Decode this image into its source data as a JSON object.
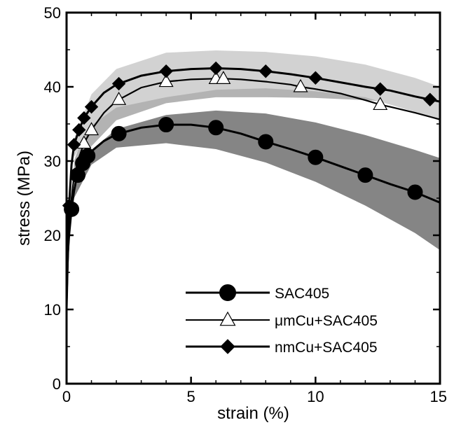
{
  "chart_data": {
    "type": "line",
    "xlabel": "strain (%)",
    "ylabel": "stress (MPa)",
    "xlim": [
      0,
      15
    ],
    "ylim": [
      0,
      50
    ],
    "x_ticks": [
      0,
      5,
      10,
      15
    ],
    "y_ticks": [
      0,
      10,
      20,
      30,
      40,
      50
    ],
    "grid": false,
    "legend_position": "bottom-right",
    "series": [
      {
        "name": "SAC405",
        "marker": "circle",
        "line_color": "#000000",
        "marker_fill": "#000000",
        "band_color": "#858585",
        "x": [
          0,
          0.05,
          0.1,
          0.2,
          0.3,
          0.4,
          0.5,
          0.6,
          0.7,
          0.8,
          1.0,
          1.5,
          2.0,
          3.0,
          4.0,
          5.0,
          6.0,
          7.0,
          8.0,
          9.0,
          10.0,
          11.0,
          12.0,
          13.0,
          14.0,
          15.0
        ],
        "y": [
          10.0,
          17.5,
          20.0,
          23.5,
          26.0,
          27.6,
          28.6,
          29.4,
          30.0,
          30.5,
          31.3,
          32.7,
          33.6,
          34.5,
          34.9,
          34.9,
          34.5,
          33.7,
          32.6,
          31.6,
          30.5,
          29.3,
          28.1,
          26.9,
          25.8,
          24.4
        ],
        "marker_x": [
          0.2,
          0.45,
          0.65,
          0.85,
          2.1,
          4.0,
          6.0,
          8.0,
          10.0,
          12.0,
          14.0
        ],
        "band_x": [
          0.3,
          1.0,
          2.0,
          4.0,
          6.0,
          8.0,
          10.0,
          12.0,
          14.0,
          15.0
        ],
        "band_upper": [
          28.0,
          31.5,
          34.3,
          36.2,
          36.8,
          36.4,
          35.2,
          33.5,
          31.5,
          30.4
        ],
        "band_lower": [
          25.0,
          29.5,
          31.8,
          32.4,
          31.6,
          29.8,
          27.2,
          24.0,
          20.3,
          18.0
        ]
      },
      {
        "name": "μmCu+SAC405",
        "marker": "triangle-open",
        "line_color": "#000000",
        "marker_fill": "#ffffff",
        "band_color": "#b3b3b3",
        "x": [
          0,
          0.05,
          0.1,
          0.2,
          0.3,
          0.5,
          0.7,
          1.0,
          1.5,
          2.0,
          3.0,
          4.0,
          5.0,
          6.0,
          6.3,
          7.0,
          8.0,
          9.0,
          9.4,
          10.0,
          11.0,
          12.0,
          12.6,
          13.0,
          14.0,
          15.0
        ],
        "y": [
          10.0,
          16.0,
          20.5,
          25.0,
          28.0,
          30.5,
          32.4,
          34.2,
          36.5,
          38.1,
          39.9,
          40.7,
          41.0,
          41.1,
          41.1,
          41.0,
          40.7,
          40.3,
          40.0,
          39.7,
          39.1,
          38.2,
          37.6,
          37.3,
          36.5,
          35.6
        ],
        "marker_x": [
          0.7,
          1.0,
          2.1,
          4.0,
          6.0,
          6.3,
          9.4,
          12.6
        ],
        "band_x": [
          0.3,
          1.0,
          2.0,
          4.0,
          6.0,
          8.0,
          10.0,
          12.0,
          14.0,
          15.0
        ],
        "band_upper": [
          30.0,
          36.5,
          41.0,
          43.6,
          44.1,
          43.6,
          42.6,
          41.5,
          40.2,
          39.2
        ],
        "band_lower": [
          26.0,
          32.0,
          35.5,
          37.8,
          38.6,
          38.6,
          38.5,
          38.2,
          37.8,
          37.5
        ]
      },
      {
        "name": "nmCu+SAC405",
        "marker": "diamond",
        "line_color": "#000000",
        "marker_fill": "#000000",
        "band_color": "#d2d2d2",
        "x": [
          0,
          0.05,
          0.1,
          0.2,
          0.3,
          0.5,
          0.7,
          1.0,
          1.5,
          2.0,
          3.0,
          4.0,
          5.0,
          6.0,
          7.0,
          8.0,
          9.0,
          10.0,
          11.0,
          12.0,
          12.6,
          13.0,
          14.0,
          15.0
        ],
        "y": [
          14.0,
          20.0,
          24.0,
          29.5,
          32.2,
          34.2,
          35.8,
          37.3,
          39.2,
          40.3,
          41.5,
          42.1,
          42.4,
          42.5,
          42.4,
          42.1,
          41.7,
          41.2,
          40.6,
          40.0,
          39.7,
          39.5,
          38.7,
          38.0
        ],
        "marker_x": [
          0.1,
          0.3,
          0.5,
          0.7,
          1.0,
          2.1,
          4.0,
          6.0,
          8.0,
          10.0,
          12.6,
          14.6
        ],
        "band_x": [
          0.3,
          1.0,
          2.0,
          4.0,
          6.0,
          8.0,
          10.0,
          12.0,
          14.0,
          15.0
        ],
        "band_upper": [
          33.0,
          39.0,
          42.4,
          44.6,
          44.9,
          44.7,
          44.1,
          43.0,
          41.2,
          40.0
        ],
        "band_lower": [
          30.5,
          34.8,
          37.2,
          38.6,
          39.6,
          39.8,
          39.4,
          38.6,
          36.6,
          35.4
        ]
      }
    ]
  }
}
